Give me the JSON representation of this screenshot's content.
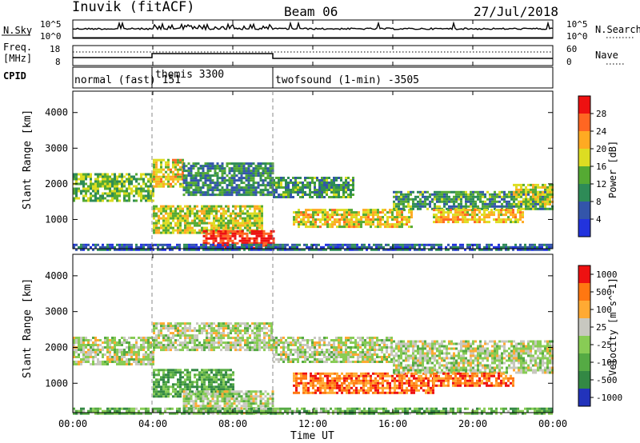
{
  "header": {
    "station": "Inuvik (fitACF)",
    "beam": "Beam 06",
    "date": "27/Jul/2018"
  },
  "top_panels": {
    "nsky_label": "N.Sky",
    "nsky_ticks": [
      "10^5",
      "10^0"
    ],
    "nsearch_label": "N.Search",
    "nsearch_ticks": [
      "10^5",
      "10^0"
    ],
    "freq_label": "Freq.",
    "freq_unit": "[MHz]",
    "freq_ticks": [
      "18",
      "8"
    ],
    "nave_label": "Nave",
    "nave_ticks": [
      "60",
      "0"
    ],
    "cpid_label": "CPID",
    "cpid_segments": [
      {
        "label": "normal (fast) 151",
        "start_hour": 0,
        "end_hour": 4
      },
      {
        "label": "themis 3300",
        "start_hour": 4,
        "end_hour": 10
      },
      {
        "label": "twofsound (1-min) -3505",
        "start_hour": 10,
        "end_hour": 24
      }
    ]
  },
  "xaxis": {
    "label": "Time UT",
    "ticks": [
      "00:00",
      "04:00",
      "08:00",
      "12:00",
      "16:00",
      "20:00",
      "00:00"
    ],
    "range_hours": [
      0,
      24
    ]
  },
  "chart_data": [
    {
      "type": "heatmap",
      "ylabel": "Slant Range [km]",
      "yticks": [
        1000,
        2000,
        3000,
        4000
      ],
      "ylim": [
        180,
        4600
      ],
      "colorbar_label": "Power [dB]",
      "colorbar_ticks": [
        "4",
        "8",
        "12",
        "16",
        "20",
        "24",
        "28"
      ],
      "colorscale": [
        "#2233dd",
        "#3355aa",
        "#2e8b57",
        "#55aa33",
        "#dddd22",
        "#ffaa22",
        "#ff6622",
        "#ee1111"
      ],
      "bands": [
        {
          "t0": 0.0,
          "t1": 4.0,
          "r0": 1500,
          "r1": 2300,
          "level": 0.45
        },
        {
          "t0": 4.0,
          "t1": 5.5,
          "r0": 1900,
          "r1": 2700,
          "level": 0.6
        },
        {
          "t0": 5.5,
          "t1": 10.0,
          "r0": 1700,
          "r1": 2600,
          "level": 0.3
        },
        {
          "t0": 4.0,
          "t1": 9.5,
          "r0": 600,
          "r1": 1400,
          "level": 0.55
        },
        {
          "t0": 6.5,
          "t1": 10.0,
          "r0": 180,
          "r1": 700,
          "level": 0.95
        },
        {
          "t0": 10.0,
          "t1": 14.0,
          "r0": 1600,
          "r1": 2200,
          "level": 0.35
        },
        {
          "t0": 11.0,
          "t1": 17.0,
          "r0": 800,
          "r1": 1300,
          "level": 0.6
        },
        {
          "t0": 16.0,
          "t1": 24.0,
          "r0": 1300,
          "r1": 1800,
          "level": 0.35
        },
        {
          "t0": 18.0,
          "t1": 22.5,
          "r0": 900,
          "r1": 1300,
          "level": 0.65
        },
        {
          "t0": 22.0,
          "t1": 24.0,
          "r0": 1400,
          "r1": 2000,
          "level": 0.55
        },
        {
          "t0": 0.0,
          "t1": 24.0,
          "r0": 180,
          "r1": 320,
          "level": 0.2
        }
      ]
    },
    {
      "type": "heatmap",
      "ylabel": "Slant Range [km]",
      "yticks": [
        1000,
        2000,
        3000,
        4000
      ],
      "ylim": [
        180,
        4600
      ],
      "colorbar_label": "Velocity [m s^-1]",
      "colorbar_ticks": [
        "1000",
        "500",
        "100",
        "25",
        "-25",
        "-100",
        "-500",
        "-1000"
      ],
      "colorscale": [
        "#2233bb",
        "#338844",
        "#55aa44",
        "#88cc55",
        "#c8c8c0",
        "#ffaa33",
        "#ff7711",
        "#ee1111"
      ],
      "bands": [
        {
          "t0": 0.0,
          "t1": 4.0,
          "r0": 1500,
          "r1": 2300,
          "level": 0.5
        },
        {
          "t0": 4.0,
          "t1": 10.0,
          "r0": 1900,
          "r1": 2700,
          "level": 0.5
        },
        {
          "t0": 4.0,
          "t1": 8.0,
          "r0": 600,
          "r1": 1400,
          "level": 0.3
        },
        {
          "t0": 5.5,
          "t1": 10.0,
          "r0": 180,
          "r1": 800,
          "level": 0.5
        },
        {
          "t0": 10.0,
          "t1": 16.0,
          "r0": 1600,
          "r1": 2300,
          "level": 0.5
        },
        {
          "t0": 11.0,
          "t1": 18.0,
          "r0": 700,
          "r1": 1300,
          "level": 0.8
        },
        {
          "t0": 16.0,
          "t1": 24.0,
          "r0": 1300,
          "r1": 2200,
          "level": 0.5
        },
        {
          "t0": 18.0,
          "t1": 22.0,
          "r0": 900,
          "r1": 1300,
          "level": 0.82
        },
        {
          "t0": 0.0,
          "t1": 24.0,
          "r0": 180,
          "r1": 320,
          "level": 0.35
        }
      ]
    }
  ]
}
